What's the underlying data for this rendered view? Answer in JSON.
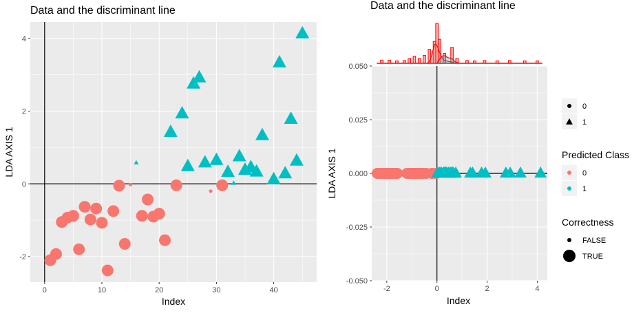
{
  "chart_data": [
    {
      "type": "scatter",
      "title": "Data and the discriminant line",
      "xlabel": "Index",
      "ylabel": "LDA AXIS 1",
      "xlim": [
        -2.5,
        47.5
      ],
      "ylim": [
        -2.7,
        4.45
      ],
      "xticks": [
        0,
        10,
        20,
        30,
        40
      ],
      "yticks": [
        -2,
        0,
        2,
        4
      ],
      "reference_lines": {
        "x": 0,
        "y": 0
      },
      "grid": true,
      "series": [
        {
          "name": "0",
          "shape": "circle",
          "color": "#F8766D",
          "points": [
            {
              "x": 1,
              "y": -2.1,
              "correct": true
            },
            {
              "x": 2,
              "y": -1.93,
              "correct": true
            },
            {
              "x": 3,
              "y": -1.05,
              "correct": true
            },
            {
              "x": 4,
              "y": -0.93,
              "correct": true
            },
            {
              "x": 5,
              "y": -0.88,
              "correct": true
            },
            {
              "x": 6,
              "y": -1.8,
              "correct": true
            },
            {
              "x": 7,
              "y": -0.63,
              "correct": true
            },
            {
              "x": 8,
              "y": -0.98,
              "correct": true
            },
            {
              "x": 9,
              "y": -0.68,
              "correct": true
            },
            {
              "x": 10,
              "y": -1.07,
              "correct": true
            },
            {
              "x": 11,
              "y": -2.38,
              "correct": true
            },
            {
              "x": 12,
              "y": -0.75,
              "correct": true
            },
            {
              "x": 13,
              "y": -0.05,
              "correct": true
            },
            {
              "x": 14,
              "y": -1.65,
              "correct": true
            },
            {
              "x": 15,
              "y": -0.02,
              "correct": false
            },
            {
              "x": 17,
              "y": -0.88,
              "correct": true
            },
            {
              "x": 18,
              "y": -0.43,
              "correct": true
            },
            {
              "x": 19,
              "y": -0.9,
              "correct": true
            },
            {
              "x": 20,
              "y": -0.82,
              "correct": true
            },
            {
              "x": 21,
              "y": -1.55,
              "correct": true
            },
            {
              "x": 23,
              "y": -0.04,
              "correct": true
            },
            {
              "x": 29,
              "y": -0.2,
              "correct": false
            },
            {
              "x": 31,
              "y": -0.04,
              "correct": true
            }
          ]
        },
        {
          "name": "1",
          "shape": "triangle",
          "color": "#00BFC4",
          "points": [
            {
              "x": 16,
              "y": 0.58,
              "correct": false
            },
            {
              "x": 22,
              "y": 1.42,
              "correct": true
            },
            {
              "x": 24,
              "y": 1.93,
              "correct": true
            },
            {
              "x": 25,
              "y": 0.48,
              "correct": true
            },
            {
              "x": 26,
              "y": 2.75,
              "correct": true
            },
            {
              "x": 27,
              "y": 2.92,
              "correct": true
            },
            {
              "x": 28,
              "y": 0.58,
              "correct": true
            },
            {
              "x": 30,
              "y": 0.65,
              "correct": true
            },
            {
              "x": 32,
              "y": 0.32,
              "correct": true
            },
            {
              "x": 33,
              "y": 0.02,
              "correct": false
            },
            {
              "x": 34,
              "y": 0.75,
              "correct": true
            },
            {
              "x": 35,
              "y": 0.38,
              "correct": true
            },
            {
              "x": 36,
              "y": 0.45,
              "correct": true
            },
            {
              "x": 37,
              "y": 0.33,
              "correct": true
            },
            {
              "x": 38,
              "y": 1.33,
              "correct": true
            },
            {
              "x": 40,
              "y": 0.12,
              "correct": true
            },
            {
              "x": 41,
              "y": 3.33,
              "correct": true
            },
            {
              "x": 42,
              "y": 0.28,
              "correct": true
            },
            {
              "x": 43,
              "y": 1.78,
              "correct": true
            },
            {
              "x": 44,
              "y": 0.63,
              "correct": true
            },
            {
              "x": 45,
              "y": 4.13,
              "correct": true
            }
          ]
        }
      ]
    },
    {
      "type": "scatter",
      "title": "Data and the discriminant line",
      "xlabel": "Index",
      "ylabel": "LDA AXIS 1",
      "xlim": [
        -2.6,
        4.4
      ],
      "ylim": [
        -0.05,
        0.05
      ],
      "xticks": [
        -2,
        0,
        2,
        4
      ],
      "yticks": [
        0.05,
        0.025,
        0,
        -0.025,
        -0.05
      ],
      "ytick_labels": [
        "0.050",
        "0.025",
        "0.000",
        "-0.025",
        "-0.050"
      ],
      "reference_lines": {
        "x": 0,
        "y": 0
      },
      "grid": true,
      "series": [
        {
          "name": "0",
          "shape": "circle",
          "color": "#F8766D",
          "x": [
            -2.38,
            -2.3,
            -2.22,
            -2.15,
            -2.1,
            -2.05,
            -1.98,
            -1.93,
            -1.85,
            -1.8,
            -1.73,
            -1.65,
            -1.58,
            -1.2,
            -1.12,
            -1.07,
            -1.0,
            -0.98,
            -0.93,
            -0.88,
            -0.82,
            -0.75,
            -0.68,
            -0.63,
            -0.55,
            -0.43,
            -0.2,
            -0.05,
            -0.04,
            -0.02
          ],
          "y": 0
        },
        {
          "name": "1",
          "shape": "triangle",
          "color": "#00BFC4",
          "x": [
            0.02,
            0.08,
            0.12,
            0.18,
            0.25,
            0.28,
            0.32,
            0.35,
            0.38,
            0.45,
            0.48,
            0.55,
            0.58,
            0.63,
            0.65,
            0.75,
            1.33,
            1.42,
            1.78,
            1.93,
            2.75,
            2.92,
            3.33,
            4.13
          ],
          "y": 0
        }
      ],
      "marginal_histogram": {
        "position": "top",
        "fill": "#F8766D",
        "outline": "#FF0000",
        "bin_width": 0.1,
        "bins": [
          {
            "x": -2.2,
            "h": 0.08
          },
          {
            "x": -1.9,
            "h": 0.08
          },
          {
            "x": -1.6,
            "h": 0.06
          },
          {
            "x": -1.3,
            "h": 0.07
          },
          {
            "x": -1.1,
            "h": 0.12
          },
          {
            "x": -0.9,
            "h": 0.18
          },
          {
            "x": -0.7,
            "h": 0.12
          },
          {
            "x": -0.5,
            "h": 0.2
          },
          {
            "x": -0.3,
            "h": 0.35
          },
          {
            "x": -0.1,
            "h": 0.55
          },
          {
            "x": 0.0,
            "h": 1.0
          },
          {
            "x": 0.1,
            "h": 0.6
          },
          {
            "x": 0.3,
            "h": 0.25
          },
          {
            "x": 0.6,
            "h": 0.4
          },
          {
            "x": 0.8,
            "h": 0.12
          },
          {
            "x": 1.2,
            "h": 0.07
          },
          {
            "x": 1.5,
            "h": 0.06
          },
          {
            "x": 1.9,
            "h": 0.07
          },
          {
            "x": 2.4,
            "h": 0.06
          },
          {
            "x": 2.9,
            "h": 0.07
          },
          {
            "x": 3.5,
            "h": 0.06
          },
          {
            "x": 4.0,
            "h": 0.06
          }
        ]
      }
    }
  ],
  "legend": {
    "shape_entries": [
      {
        "label": "0",
        "shape": "circle"
      },
      {
        "label": "1",
        "shape": "triangle"
      }
    ],
    "predicted_class": {
      "title": "Predicted Class",
      "entries": [
        {
          "label": "0",
          "color": "#F8766D"
        },
        {
          "label": "1",
          "color": "#00BFC4"
        }
      ]
    },
    "correctness": {
      "title": "Correctness",
      "entries": [
        {
          "label": "FALSE",
          "size": "small"
        },
        {
          "label": "TRUE",
          "size": "large"
        }
      ]
    }
  }
}
